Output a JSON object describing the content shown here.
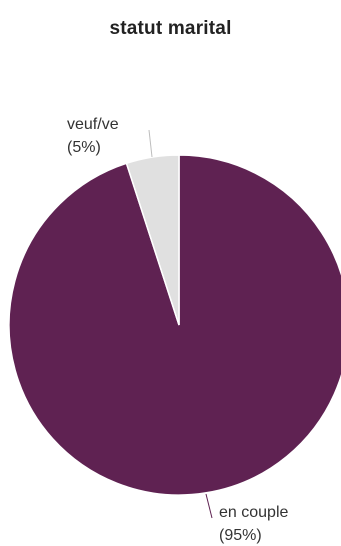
{
  "chart_data": {
    "type": "pie",
    "title": "statut marital",
    "slices": [
      {
        "label": "en couple",
        "percent_label": "(95%)",
        "value": 95,
        "color": "#5f2252"
      },
      {
        "label": "veuf/ve",
        "percent_label": "(5%)",
        "value": 5,
        "color": "#e0e0e0"
      }
    ],
    "start_angle_deg": 0,
    "direction": "clockwise",
    "label_line_color": "#5f2252"
  }
}
